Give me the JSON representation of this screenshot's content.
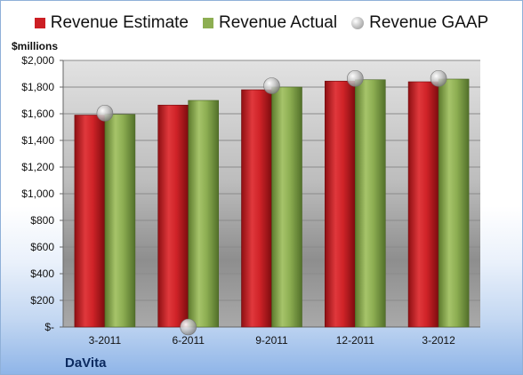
{
  "legend": {
    "estimate": "Revenue Estimate",
    "actual": "Revenue Actual",
    "gaap": "Revenue GAAP"
  },
  "unit_label": "$millions",
  "company": "DaVita",
  "colors": {
    "estimate": "#cc1f24",
    "actual": "#8dae52",
    "gaap": "#b9b9b9"
  },
  "chart_data": {
    "type": "bar",
    "categories": [
      "3-2011",
      "6-2011",
      "9-2011",
      "12-2011",
      "3-2012"
    ],
    "series": [
      {
        "name": "Revenue Estimate",
        "kind": "bar",
        "values": [
          1590,
          1665,
          1780,
          1845,
          1840
        ]
      },
      {
        "name": "Revenue Actual",
        "kind": "bar",
        "values": [
          1595,
          1700,
          1800,
          1855,
          1860
        ]
      },
      {
        "name": "Revenue GAAP",
        "kind": "marker",
        "values": [
          1605,
          0,
          1810,
          1865,
          1865
        ]
      }
    ],
    "ylabel": "$millions",
    "ylim": [
      0,
      2000
    ],
    "yticks": [
      0,
      200,
      400,
      600,
      800,
      1000,
      1200,
      1400,
      1600,
      1800,
      2000
    ],
    "ytick_labels": [
      "$-",
      "$200",
      "$400",
      "$600",
      "$800",
      "$1,000",
      "$1,200",
      "$1,400",
      "$1,600",
      "$1,800",
      "$2,000"
    ],
    "grid": true,
    "legend_position": "top"
  }
}
